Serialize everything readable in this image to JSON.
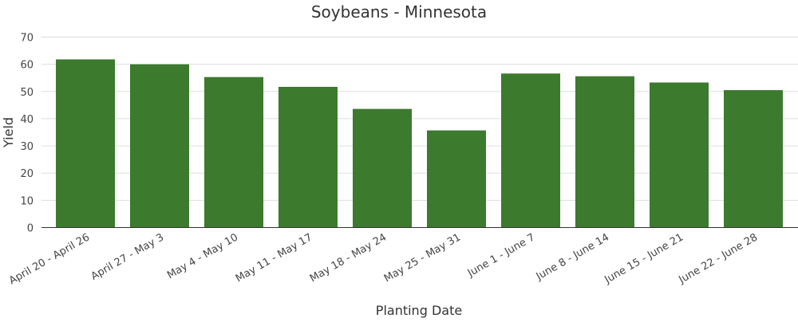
{
  "chart_data": {
    "type": "bar",
    "title": "Soybeans - Minnesota",
    "xlabel": "Planting Date",
    "ylabel": "Yield",
    "categories": [
      "April 20 - April 26",
      "April 27 - May 3",
      "May 4 - May 10",
      "May 11 - May 17",
      "May 18 - May 24",
      "May 25 - May 31",
      "June 1 - June 7",
      "June 8 - June 14",
      "June 15 - June 21",
      "June 22 - June 28"
    ],
    "values": [
      61.8,
      60.0,
      55.3,
      51.7,
      43.6,
      35.7,
      56.6,
      55.6,
      53.3,
      50.5
    ],
    "ylim": [
      0,
      70
    ],
    "yticks": [
      0,
      10,
      20,
      30,
      40,
      50,
      60,
      70
    ],
    "grid": true,
    "bar_color": "#3c7a2e"
  }
}
